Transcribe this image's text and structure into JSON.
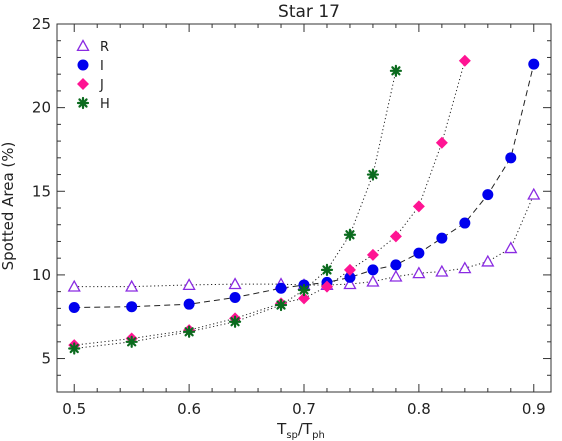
{
  "chart_data": {
    "type": "line",
    "title": "Star 17",
    "xlabel": {
      "main": "T",
      "sub1": "sp",
      "slash": "/T",
      "sub2": "ph"
    },
    "ylabel": "Spotted Area (%)",
    "xlim": [
      0.485,
      0.915
    ],
    "ylim": [
      3,
      25
    ],
    "xticks": [
      0.5,
      0.6,
      0.7,
      0.8,
      0.9
    ],
    "xtick_labels": [
      "0.5",
      "0.6",
      "0.7",
      "0.8",
      "0.9"
    ],
    "yticks": [
      5,
      10,
      15,
      20,
      25
    ],
    "ytick_labels": [
      "5",
      "10",
      "15",
      "20",
      "25"
    ],
    "legend_position": "top-left",
    "series": [
      {
        "name": "R",
        "marker": "open-triangle",
        "line": "dotted",
        "color": "#8a2be2",
        "x": [
          0.5,
          0.55,
          0.6,
          0.64,
          0.68,
          0.7,
          0.72,
          0.74,
          0.76,
          0.78,
          0.8,
          0.82,
          0.84,
          0.86,
          0.88,
          0.9
        ],
        "y": [
          9.3,
          9.3,
          9.4,
          9.45,
          9.45,
          9.4,
          9.4,
          9.45,
          9.6,
          9.9,
          10.1,
          10.2,
          10.4,
          10.8,
          11.6,
          14.8
        ]
      },
      {
        "name": "I",
        "marker": "filled-circle",
        "line": "dashed",
        "color": "#0000ee",
        "x": [
          0.5,
          0.55,
          0.6,
          0.64,
          0.68,
          0.7,
          0.72,
          0.74,
          0.76,
          0.78,
          0.8,
          0.82,
          0.84,
          0.86,
          0.88,
          0.9
        ],
        "y": [
          8.05,
          8.1,
          8.25,
          8.65,
          9.2,
          9.4,
          9.55,
          9.85,
          10.3,
          10.6,
          11.3,
          12.2,
          13.1,
          14.8,
          17.0,
          22.6
        ]
      },
      {
        "name": "J",
        "marker": "filled-diamond",
        "line": "dotted",
        "color": "#ff1493",
        "x": [
          0.5,
          0.55,
          0.6,
          0.64,
          0.68,
          0.7,
          0.72,
          0.74,
          0.76,
          0.78,
          0.8,
          0.82,
          0.84
        ],
        "y": [
          5.8,
          6.2,
          6.7,
          7.4,
          8.3,
          8.6,
          9.3,
          10.3,
          11.2,
          12.3,
          14.1,
          17.9,
          22.8
        ]
      },
      {
        "name": "H",
        "marker": "asterisk",
        "line": "dotted",
        "color": "#0b6b1e",
        "x": [
          0.5,
          0.55,
          0.6,
          0.64,
          0.68,
          0.7,
          0.72,
          0.74,
          0.76,
          0.78
        ],
        "y": [
          5.6,
          6.0,
          6.6,
          7.2,
          8.2,
          9.1,
          10.3,
          12.4,
          16.0,
          22.2
        ]
      }
    ]
  }
}
